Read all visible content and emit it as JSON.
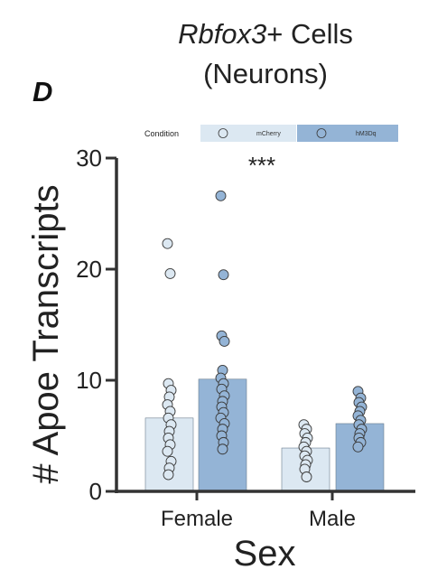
{
  "panel_label": "D",
  "title": {
    "italic": "Rbfox3",
    "rest": "+ Cells",
    "line2": "(Neurons)"
  },
  "colors": {
    "mCherry": "#dce8f2",
    "hM3Dq": "#94b4d6",
    "axis": "#333333",
    "point_stroke": "#3a3a3a"
  },
  "chart_data": {
    "type": "bar",
    "xlabel": "Sex",
    "ylabel": "# Apoe Transcripts",
    "categories": [
      "Female",
      "Male"
    ],
    "ylim": [
      0,
      30
    ],
    "yticks": [
      0,
      10,
      20,
      30
    ],
    "grid": false,
    "legend": {
      "position": "top",
      "title": "Condition",
      "entries": [
        "mCherry",
        "hM3Dq"
      ]
    },
    "annotation": {
      "text": "***",
      "category": "Female"
    },
    "series": [
      {
        "name": "mCherry",
        "values": [
          6.6,
          3.9
        ],
        "points": [
          [
            22.3,
            19.6,
            9.7,
            9.1,
            8.5,
            7.8,
            7.2,
            6.6,
            6.0,
            5.4,
            4.8,
            4.2,
            3.6,
            2.7,
            2.1,
            1.5
          ],
          [
            6.0,
            5.6,
            5.2,
            4.8,
            4.4,
            4.0,
            3.6,
            3.2,
            2.8,
            2.4,
            2.0,
            1.3
          ]
        ]
      },
      {
        "name": "hM3Dq",
        "values": [
          10.1,
          6.1
        ],
        "points": [
          [
            26.6,
            19.5,
            14.0,
            13.5,
            10.9,
            10.2,
            9.7,
            9.2,
            8.6,
            8.1,
            7.6,
            7.1,
            6.6,
            6.1,
            5.6,
            5.0,
            4.4,
            3.8
          ],
          [
            9.0,
            8.4,
            8.0,
            7.6,
            7.2,
            6.8,
            6.4,
            6.0,
            5.6,
            5.2,
            4.8,
            4.4,
            4.0
          ]
        ]
      }
    ]
  }
}
